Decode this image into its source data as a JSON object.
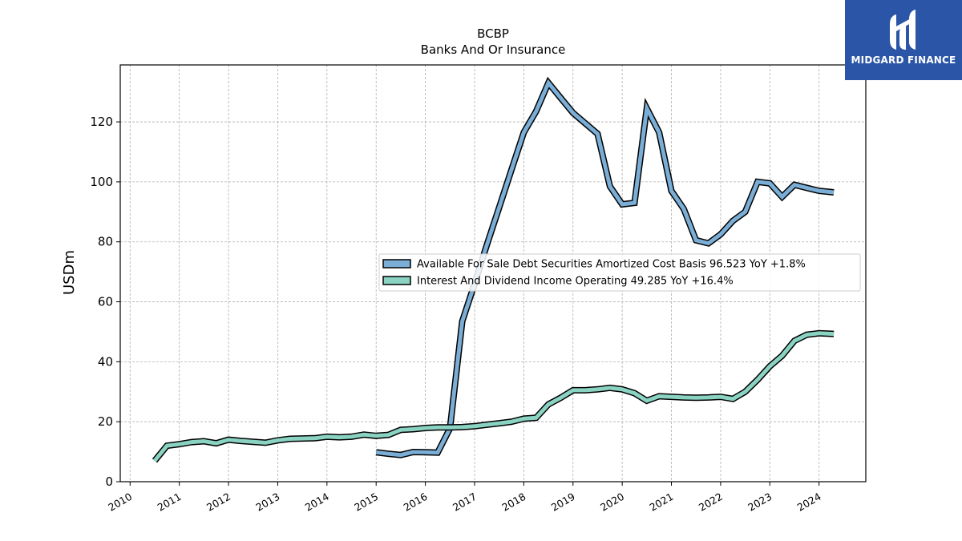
{
  "chart_data": {
    "type": "line",
    "title": "BCBP",
    "subtitle": "Banks And Or Insurance",
    "ylabel": "USDm",
    "xlabel": "",
    "xlim": [
      2009.8,
      2024.95
    ],
    "ylim": [
      0,
      139
    ],
    "x_ticks": [
      "2010",
      "2011",
      "2012",
      "2013",
      "2014",
      "2015",
      "2016",
      "2017",
      "2018",
      "2019",
      "2020",
      "2021",
      "2022",
      "2023",
      "2024"
    ],
    "y_ticks": [
      "0",
      "20",
      "40",
      "60",
      "80",
      "100",
      "120"
    ],
    "grid": true,
    "legend_position": "center-right",
    "series": [
      {
        "name": "Available For Sale Debt Securities Amortized Cost Basis  96.523 YoY +1.8%",
        "color": "#7aaed6",
        "points": [
          [
            2015.0,
            9.8
          ],
          [
            2015.25,
            9.3
          ],
          [
            2015.5,
            8.9
          ],
          [
            2015.75,
            9.9
          ],
          [
            2016.0,
            9.8
          ],
          [
            2016.25,
            9.7
          ],
          [
            2016.5,
            17.8
          ],
          [
            2016.75,
            53.5
          ],
          [
            2017.0,
            66.0
          ],
          [
            2017.25,
            79.0
          ],
          [
            2017.5,
            91.5
          ],
          [
            2017.75,
            104.0
          ],
          [
            2018.0,
            116.5
          ],
          [
            2018.25,
            123.5
          ],
          [
            2018.5,
            133.0
          ],
          [
            2018.75,
            128.0
          ],
          [
            2019.0,
            123.0
          ],
          [
            2019.25,
            119.5
          ],
          [
            2019.5,
            116.0
          ],
          [
            2019.75,
            98.5
          ],
          [
            2020.0,
            92.5
          ],
          [
            2020.25,
            93.0
          ],
          [
            2020.5,
            124.5
          ],
          [
            2020.75,
            116.5
          ],
          [
            2021.0,
            97.0
          ],
          [
            2021.25,
            91.0
          ],
          [
            2021.5,
            80.5
          ],
          [
            2021.75,
            79.5
          ],
          [
            2022.0,
            82.5
          ],
          [
            2022.25,
            87.0
          ],
          [
            2022.5,
            90.0
          ],
          [
            2022.75,
            100.0
          ],
          [
            2023.0,
            99.5
          ],
          [
            2023.25,
            95.0
          ],
          [
            2023.5,
            99.0
          ],
          [
            2023.75,
            98.0
          ],
          [
            2024.0,
            97.0
          ],
          [
            2024.3,
            96.5
          ]
        ]
      },
      {
        "name": "Interest And Dividend Income Operating  49.285 YoY +16.4%",
        "color": "#8ad3c3",
        "points": [
          [
            2010.5,
            7.0
          ],
          [
            2010.75,
            12.0
          ],
          [
            2011.0,
            12.5
          ],
          [
            2011.25,
            13.2
          ],
          [
            2011.5,
            13.5
          ],
          [
            2011.75,
            12.8
          ],
          [
            2012.0,
            14.0
          ],
          [
            2012.25,
            13.6
          ],
          [
            2012.5,
            13.3
          ],
          [
            2012.75,
            13.0
          ],
          [
            2013.0,
            13.8
          ],
          [
            2013.25,
            14.3
          ],
          [
            2013.5,
            14.4
          ],
          [
            2013.75,
            14.5
          ],
          [
            2014.0,
            15.0
          ],
          [
            2014.25,
            14.8
          ],
          [
            2014.5,
            15.0
          ],
          [
            2014.75,
            15.7
          ],
          [
            2015.0,
            15.3
          ],
          [
            2015.25,
            15.6
          ],
          [
            2015.5,
            17.3
          ],
          [
            2015.75,
            17.5
          ],
          [
            2016.0,
            17.9
          ],
          [
            2016.25,
            18.1
          ],
          [
            2016.5,
            18.1
          ],
          [
            2016.75,
            18.2
          ],
          [
            2017.0,
            18.5
          ],
          [
            2017.25,
            19.0
          ],
          [
            2017.5,
            19.5
          ],
          [
            2017.75,
            20.0
          ],
          [
            2018.0,
            21.0
          ],
          [
            2018.25,
            21.3
          ],
          [
            2018.5,
            25.8
          ],
          [
            2018.75,
            28.0
          ],
          [
            2019.0,
            30.5
          ],
          [
            2019.25,
            30.5
          ],
          [
            2019.5,
            30.8
          ],
          [
            2019.75,
            31.3
          ],
          [
            2020.0,
            30.8
          ],
          [
            2020.25,
            29.5
          ],
          [
            2020.5,
            27.0
          ],
          [
            2020.75,
            28.5
          ],
          [
            2021.0,
            28.3
          ],
          [
            2021.25,
            28.1
          ],
          [
            2021.5,
            28.0
          ],
          [
            2021.75,
            28.1
          ],
          [
            2022.0,
            28.3
          ],
          [
            2022.25,
            27.6
          ],
          [
            2022.5,
            30.0
          ],
          [
            2022.75,
            34.0
          ],
          [
            2023.0,
            38.5
          ],
          [
            2023.25,
            42.0
          ],
          [
            2023.5,
            47.0
          ],
          [
            2023.75,
            49.0
          ],
          [
            2024.0,
            49.5
          ],
          [
            2024.3,
            49.3
          ]
        ]
      }
    ]
  },
  "logo": {
    "text": "MIDGARD FINANCE",
    "background": "#2b56a8"
  }
}
